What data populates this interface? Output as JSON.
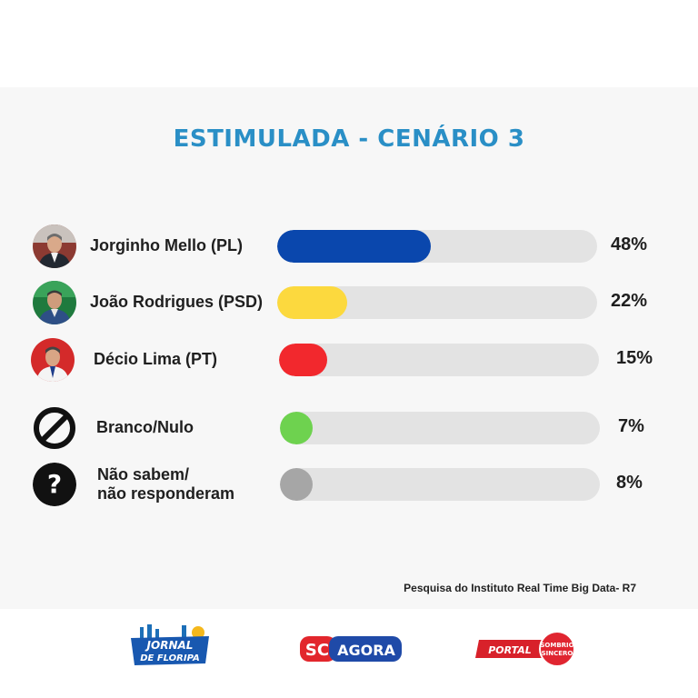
{
  "chart_data": {
    "type": "bar",
    "orientation": "horizontal",
    "title": "ESTIMULADA - CENÁRIO 3",
    "xlim": [
      0,
      100
    ],
    "categories": [
      "Jorginho Mello (PL)",
      "João Rodrigues (PSD)",
      "Décio Lima (PT)",
      "Branco/Nulo",
      "Não sabem/ não responderam"
    ],
    "values": [
      48,
      22,
      15,
      7,
      8
    ],
    "value_labels": [
      "48%",
      "22%",
      "15%",
      "7%",
      "8%"
    ],
    "colors": [
      "#0a47ad",
      "#fcd93e",
      "#f2282d",
      "#6ed24f",
      "#a6a6a6"
    ],
    "icons": [
      "photo-avatar",
      "photo-avatar",
      "photo-avatar",
      "prohibited-icon",
      "question-icon"
    ],
    "label_lines": [
      [
        "Jorginho Mello (PL)"
      ],
      [
        "João Rodrigues (PSD)"
      ],
      [
        "Décio Lima (PT)"
      ],
      [
        "Branco/Nulo"
      ],
      [
        "Não sabem/",
        "não responderam"
      ]
    ]
  },
  "source": "Pesquisa do Instituto Real Time Big Data- R7",
  "logos": {
    "jornal_top": "JORNAL",
    "jornal_bottom": "DE FLORIPA",
    "sc": "SC",
    "agora": "AGORA",
    "portal": "PORTAL",
    "sombrio_top": "SOMBRIO",
    "sombrio_bottom": "SINCERO"
  }
}
